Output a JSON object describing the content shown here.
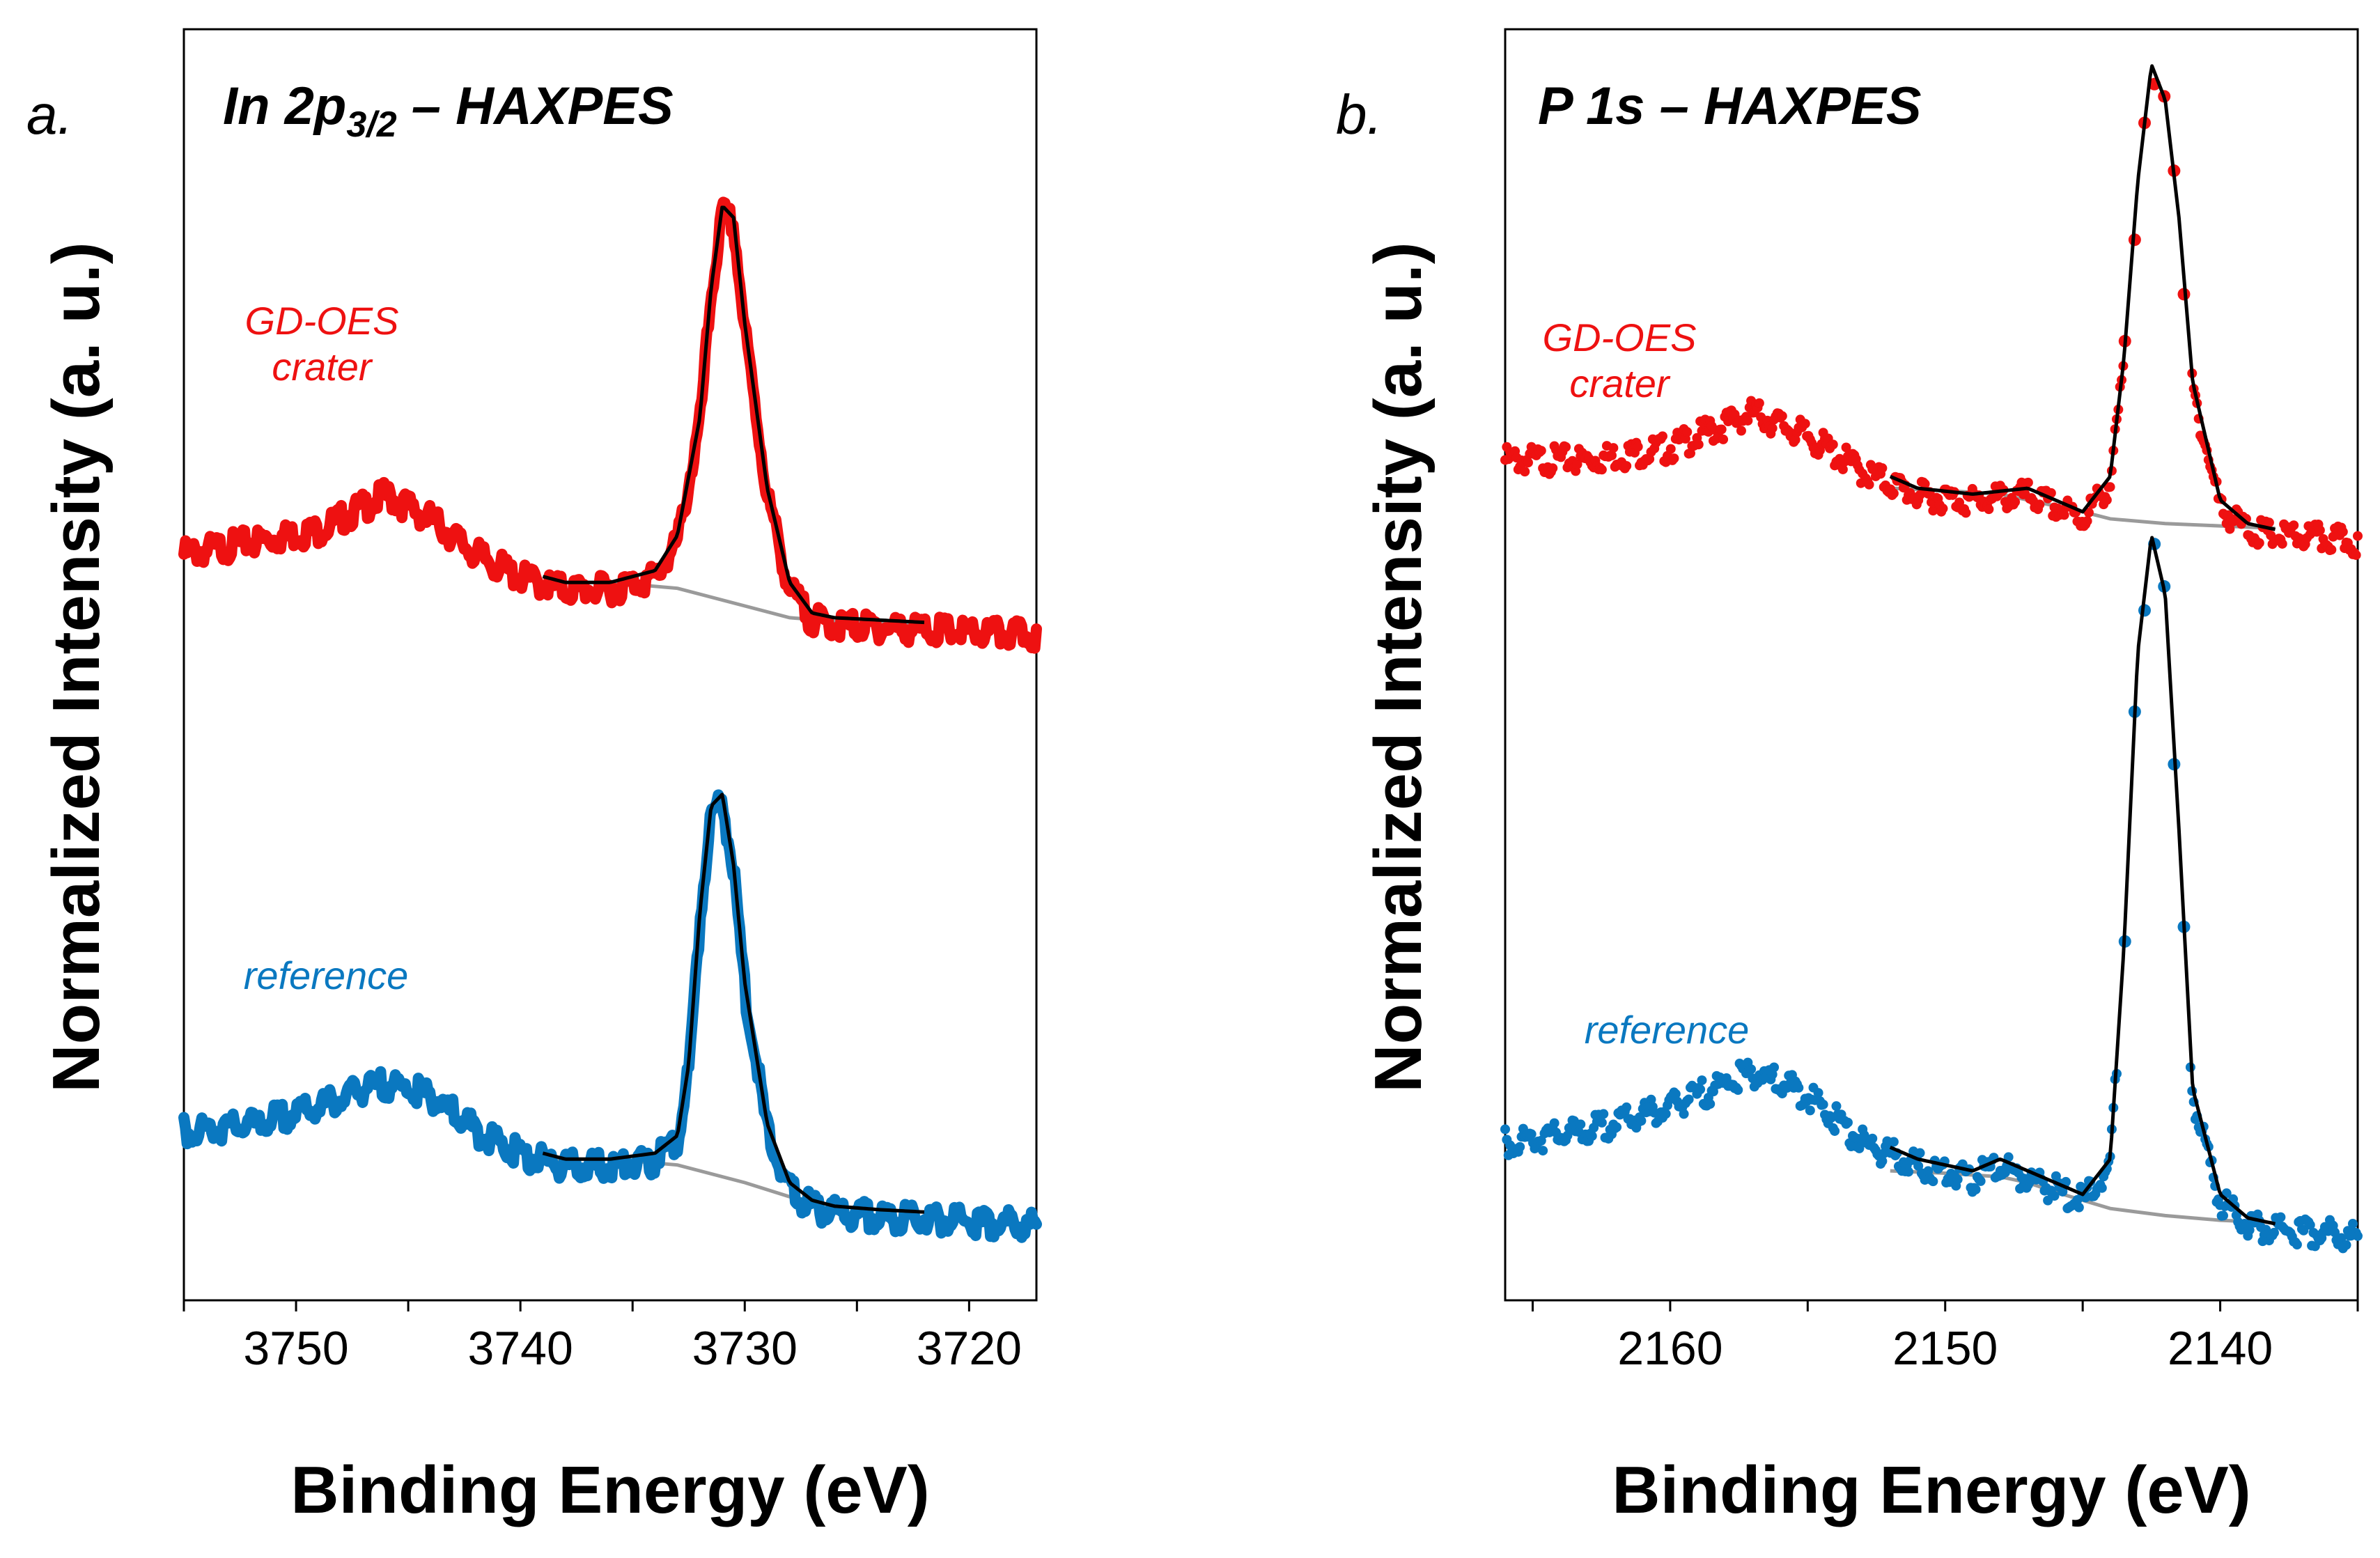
{
  "colors": {
    "crater": "#ee1111",
    "reference": "#0a78c0",
    "fit": "#000000",
    "background_line": "#9a9a9a"
  },
  "chart_data": [
    {
      "id": "a",
      "type": "line",
      "panel_label": "a.",
      "title": "In 2p",
      "title_subscript": "3/2",
      "title_suffix": " – HAXPES",
      "xlabel": "Binding Energy (eV)",
      "ylabel": "Normalized Intensity (a. u.)",
      "xlim": [
        3755,
        3717
      ],
      "ylim": [
        0,
        1.08
      ],
      "x_reversed": true,
      "xticks_minor": [
        3755,
        3750,
        3745,
        3740,
        3735,
        3730,
        3725,
        3720
      ],
      "xtick_labels": [
        "3750",
        "3740",
        "3730",
        "3720"
      ],
      "xtick_label_values": [
        3750,
        3740,
        3730,
        3720
      ],
      "yticks": "none",
      "fit_range": [
        3739,
        3722
      ],
      "series": [
        {
          "name": "GD-OES crater",
          "label_lines": [
            "GD-OES",
            "crater"
          ],
          "color_key": "crater",
          "marker": "line-dots",
          "x": [
            3755,
            3752,
            3749,
            3747,
            3746,
            3744,
            3742,
            3740,
            3738,
            3736,
            3734,
            3733,
            3732,
            3731.5,
            3731,
            3730.5,
            3730,
            3729,
            3728,
            3727,
            3726,
            3724,
            3722,
            3720,
            3717
          ],
          "y": [
            0.64,
            0.65,
            0.66,
            0.68,
            0.69,
            0.67,
            0.64,
            0.62,
            0.61,
            0.61,
            0.62,
            0.65,
            0.75,
            0.86,
            0.93,
            0.92,
            0.83,
            0.69,
            0.61,
            0.584,
            0.58,
            0.578,
            0.576,
            0.573,
            0.571
          ],
          "background_y": [
            0.61,
            0.61,
            0.605,
            0.59,
            0.58,
            0.577,
            0.576,
            0.574
          ]
        },
        {
          "name": "reference",
          "label_lines": [
            "reference"
          ],
          "color_key": "reference",
          "marker": "line-dots",
          "x": [
            3755,
            3752,
            3749,
            3747,
            3746,
            3744,
            3742,
            3740,
            3738,
            3736,
            3734,
            3733,
            3732.5,
            3732,
            3731.5,
            3731,
            3730.5,
            3730,
            3729,
            3728,
            3727,
            3726,
            3724,
            3722,
            3720,
            3717
          ],
          "y": [
            0.15,
            0.155,
            0.17,
            0.185,
            0.19,
            0.18,
            0.15,
            0.13,
            0.12,
            0.12,
            0.125,
            0.14,
            0.2,
            0.33,
            0.42,
            0.43,
            0.37,
            0.27,
            0.15,
            0.1,
            0.085,
            0.08,
            0.077,
            0.075,
            0.073,
            0.07
          ],
          "background_y": [
            0.12,
            0.12,
            0.115,
            0.1,
            0.088,
            0.08,
            0.077,
            0.075
          ]
        }
      ],
      "background_x": [
        3739,
        3736,
        3733,
        3730,
        3728,
        3726,
        3724,
        3722
      ]
    },
    {
      "id": "b",
      "type": "scatter",
      "panel_label": "b.",
      "title": "P 1s – HAXPES",
      "title_subscript": "",
      "title_suffix": "",
      "xlabel": "Binding Energy (eV)",
      "ylabel": "Normalized Intensity (a. u.)",
      "xlim": [
        2166,
        2135
      ],
      "ylim": [
        0,
        1.08
      ],
      "x_reversed": true,
      "xticks_minor": [
        2165,
        2160,
        2155,
        2150,
        2145,
        2140,
        2135
      ],
      "xtick_labels": [
        "2160",
        "2150",
        "2140"
      ],
      "xtick_label_values": [
        2160,
        2150,
        2140
      ],
      "yticks": "none",
      "fit_range": [
        2152,
        2138
      ],
      "series": [
        {
          "name": "GD-OES crater",
          "label_lines": [
            "GD-OES",
            "crater"
          ],
          "color_key": "crater",
          "marker": "dots",
          "x": [
            2166,
            2163,
            2160,
            2158,
            2157,
            2155,
            2153,
            2151,
            2149,
            2147,
            2146,
            2145,
            2144,
            2143.5,
            2143,
            2142.5,
            2142,
            2141.5,
            2141,
            2140,
            2139,
            2138,
            2137,
            2135
          ],
          "y": [
            0.72,
            0.72,
            0.73,
            0.75,
            0.76,
            0.74,
            0.71,
            0.69,
            0.685,
            0.69,
            0.68,
            0.67,
            0.7,
            0.8,
            0.95,
            1.05,
            1.02,
            0.92,
            0.78,
            0.68,
            0.66,
            0.655,
            0.655,
            0.65
          ],
          "background_y": [
            0.69,
            0.688,
            0.685,
            0.68,
            0.675,
            0.67,
            0.664,
            0.66,
            0.658,
            0.656
          ]
        },
        {
          "name": "reference",
          "label_lines": [
            "reference"
          ],
          "color_key": "reference",
          "marker": "dots",
          "x": [
            2166,
            2163,
            2160,
            2158,
            2157,
            2155,
            2153,
            2151,
            2149,
            2148,
            2147,
            2146,
            2145,
            2144,
            2143.5,
            2143,
            2142.5,
            2142,
            2141.5,
            2141,
            2140,
            2139,
            2138,
            2137,
            2135
          ],
          "y": [
            0.14,
            0.15,
            0.17,
            0.19,
            0.2,
            0.18,
            0.14,
            0.12,
            0.11,
            0.12,
            0.11,
            0.1,
            0.09,
            0.12,
            0.3,
            0.55,
            0.65,
            0.6,
            0.4,
            0.18,
            0.09,
            0.07,
            0.065,
            0.065,
            0.06
          ],
          "background_y": [
            0.11,
            0.108,
            0.105,
            0.1,
            0.092,
            0.085,
            0.078,
            0.072,
            0.068,
            0.066
          ]
        }
      ],
      "background_x": [
        2152,
        2150,
        2148,
        2147,
        2146,
        2145,
        2144,
        2142,
        2140,
        2138
      ]
    }
  ]
}
